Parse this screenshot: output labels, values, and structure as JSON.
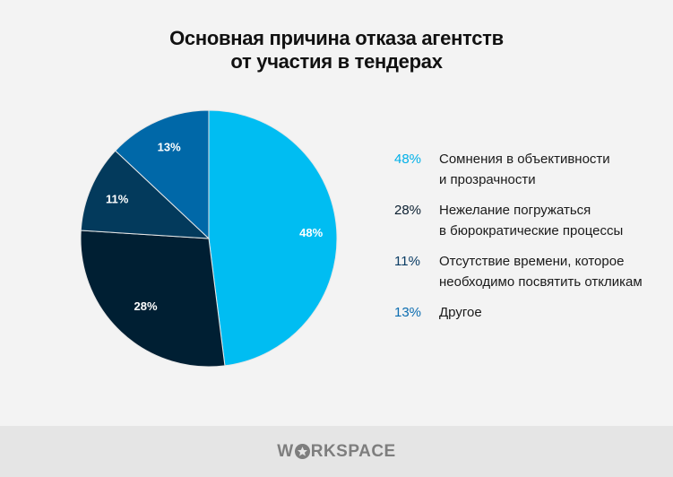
{
  "title": {
    "line1": "Основная причина отказа агентств",
    "line2": "от участия в тендерах"
  },
  "chart_data": {
    "type": "pie",
    "title": "Основная причина отказа агентств от участия в тендерах",
    "categories": [
      "Сомнения в объективности и прозрачности",
      "Нежелание погружаться в бюрократические процессы",
      "Отсутствие времени, которое необходимо посвятить откликам",
      "Другое"
    ],
    "values": [
      48,
      28,
      11,
      13
    ],
    "unit": "%",
    "colors": [
      "#00bdf2",
      "#001f33",
      "#033a5c",
      "#0068a8"
    ],
    "start_angle": "12 o'clock, clockwise",
    "legend_position": "right"
  },
  "slices": [
    {
      "label": "48%",
      "color": "#00bdf2"
    },
    {
      "label": "28%",
      "color": "#001f33"
    },
    {
      "label": "11%",
      "color": "#033a5c"
    },
    {
      "label": "13%",
      "color": "#0068a8"
    }
  ],
  "legend": [
    {
      "pct": "48%",
      "line1": "Сомнения в объективности",
      "line2": "и прозрачности",
      "pct_color": "#00b0e8"
    },
    {
      "pct": "28%",
      "line1": "Нежелание погружаться",
      "line2": "в бюрократические процессы",
      "pct_color": "#0b1f30"
    },
    {
      "pct": "11%",
      "line1": "Отсутствие времени, которое",
      "line2": "необходимо посвятить откликам",
      "pct_color": "#0a3c64"
    },
    {
      "pct": "13%",
      "line1": "Другое",
      "line2": "",
      "pct_color": "#0a6cb0"
    }
  ],
  "footer": {
    "logo_pre": "W",
    "logo_post": "RKSPACE"
  }
}
